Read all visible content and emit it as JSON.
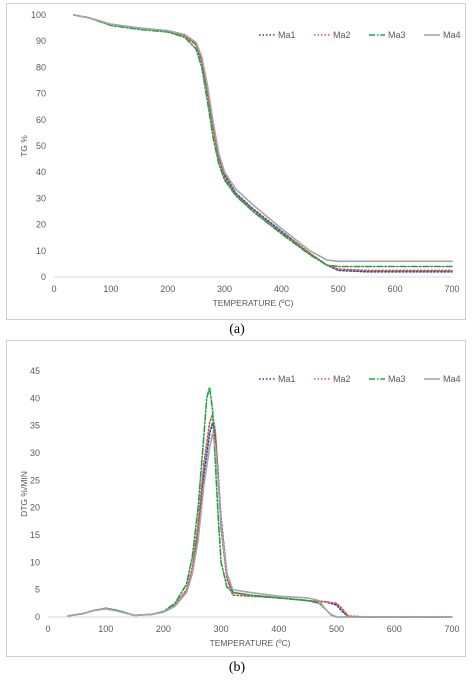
{
  "chart_data": [
    {
      "type": "line",
      "title": "",
      "xlabel": "TEMPERATURE (ºC)",
      "ylabel": "TG %",
      "xlim": [
        0,
        700
      ],
      "ylim": [
        0,
        100
      ],
      "xticks": [
        0,
        100,
        200,
        300,
        400,
        500,
        600,
        700
      ],
      "yticks": [
        0,
        10,
        20,
        30,
        40,
        50,
        60,
        70,
        80,
        90,
        100
      ],
      "grid": false,
      "legend": "top-right",
      "caption": "(a)",
      "series": [
        {
          "name": "Ma1",
          "color": "#1f4e9e",
          "dash": "1.5,2",
          "x": [
            35,
            60,
            100,
            150,
            200,
            230,
            250,
            260,
            270,
            280,
            290,
            300,
            320,
            350,
            400,
            450,
            480,
            500,
            550,
            600,
            650,
            700
          ],
          "y": [
            100,
            99,
            96.5,
            95,
            94,
            92.5,
            89,
            83,
            72,
            58,
            46,
            39,
            32,
            26,
            17.5,
            9,
            4.5,
            2.5,
            2,
            2,
            2,
            2
          ]
        },
        {
          "name": "Ma2",
          "color": "#e04a4a",
          "dash": "1.5,2",
          "x": [
            35,
            60,
            100,
            150,
            200,
            230,
            250,
            260,
            270,
            280,
            290,
            300,
            320,
            350,
            400,
            450,
            480,
            500,
            550,
            600,
            650,
            700
          ],
          "y": [
            100,
            99,
            96.5,
            95,
            94,
            92,
            88.5,
            82,
            70,
            56,
            45,
            38,
            31.5,
            25.5,
            17,
            9,
            4.5,
            3,
            2.5,
            2.5,
            2.5,
            2.5
          ]
        },
        {
          "name": "Ma3",
          "color": "#1ea34a",
          "dash": "6,2,1.5,2",
          "x": [
            35,
            60,
            100,
            150,
            200,
            230,
            250,
            260,
            270,
            280,
            290,
            300,
            320,
            350,
            400,
            450,
            480,
            500,
            550,
            600,
            650,
            700
          ],
          "y": [
            100,
            99,
            96,
            94.5,
            93.5,
            91.5,
            87,
            80,
            67,
            53,
            43,
            37,
            31,
            25,
            16.5,
            8.5,
            4.5,
            4,
            4,
            4,
            4,
            4
          ]
        },
        {
          "name": "Ma4",
          "color": "#a6a6a6",
          "dash": "",
          "x": [
            35,
            60,
            100,
            150,
            200,
            230,
            250,
            260,
            270,
            280,
            290,
            300,
            320,
            350,
            400,
            450,
            480,
            500,
            550,
            600,
            650,
            700
          ],
          "y": [
            100,
            99,
            96.5,
            95,
            94,
            92.5,
            89.5,
            84,
            73,
            59,
            47,
            40,
            33.5,
            27.5,
            18.5,
            10,
            6.5,
            6,
            6,
            6,
            6,
            6
          ]
        }
      ]
    },
    {
      "type": "line",
      "title": "",
      "xlabel": "TEMPERATURE (ºC)",
      "ylabel": "DTG %/MIN",
      "xlim": [
        0,
        700
      ],
      "ylim": [
        0,
        45
      ],
      "xticks": [
        0,
        100,
        200,
        300,
        400,
        500,
        600,
        700
      ],
      "yticks": [
        0,
        5,
        10,
        15,
        20,
        25,
        30,
        35,
        40,
        45
      ],
      "grid": false,
      "legend": "top-right",
      "caption": "(b)",
      "series": [
        {
          "name": "Ma1",
          "color": "#1f4e9e",
          "dash": "1.5,2",
          "x": [
            35,
            60,
            80,
            100,
            120,
            150,
            180,
            200,
            220,
            240,
            250,
            260,
            270,
            280,
            285,
            290,
            295,
            300,
            310,
            320,
            350,
            400,
            450,
            480,
            500,
            510,
            520,
            550,
            600,
            650,
            700
          ],
          "y": [
            0.2,
            0.6,
            1.2,
            1.6,
            1.2,
            0.3,
            0.5,
            0.9,
            2,
            4.5,
            8,
            15,
            26,
            33.5,
            35.5,
            33,
            26,
            18,
            8,
            4.5,
            4,
            3.5,
            3,
            2.8,
            2.2,
            1,
            0.1,
            0,
            0,
            0,
            0
          ]
        },
        {
          "name": "Ma2",
          "color": "#e04a4a",
          "dash": "1.5,2",
          "x": [
            35,
            60,
            80,
            100,
            120,
            150,
            180,
            200,
            220,
            240,
            250,
            260,
            270,
            280,
            285,
            290,
            295,
            300,
            310,
            320,
            350,
            400,
            450,
            480,
            500,
            510,
            520,
            550,
            600,
            650,
            700
          ],
          "y": [
            0.2,
            0.6,
            1.2,
            1.5,
            1.1,
            0.3,
            0.5,
            0.9,
            2.2,
            5,
            9,
            17,
            28,
            35.5,
            37,
            34,
            25,
            16,
            7,
            4,
            3.8,
            3.5,
            3,
            2.8,
            2.5,
            1.5,
            0.2,
            0,
            0,
            0,
            0
          ]
        },
        {
          "name": "Ma3",
          "color": "#1ea34a",
          "dash": "6,2,1.5,2",
          "x": [
            35,
            60,
            80,
            100,
            120,
            150,
            180,
            200,
            220,
            240,
            250,
            260,
            270,
            275,
            280,
            285,
            290,
            295,
            300,
            310,
            320,
            350,
            400,
            450,
            470,
            480,
            490,
            500,
            550,
            600,
            650,
            700
          ],
          "y": [
            0.2,
            0.6,
            1.2,
            1.6,
            1.2,
            0.3,
            0.5,
            1,
            2.5,
            6,
            11,
            20,
            33,
            40,
            42,
            38,
            28,
            18,
            10,
            5.5,
            4.5,
            4,
            3.5,
            3,
            2.5,
            1.5,
            0.4,
            0,
            0,
            0,
            0,
            0
          ]
        },
        {
          "name": "Ma4",
          "color": "#a6a6a6",
          "dash": "",
          "x": [
            35,
            60,
            80,
            100,
            120,
            150,
            180,
            200,
            220,
            240,
            250,
            260,
            270,
            280,
            285,
            290,
            295,
            300,
            310,
            320,
            350,
            400,
            450,
            470,
            480,
            490,
            500,
            550,
            600,
            650,
            700
          ],
          "y": [
            0.2,
            0.6,
            1.2,
            1.5,
            1.1,
            0.3,
            0.5,
            0.9,
            2,
            4.5,
            8,
            14,
            24,
            31,
            33.5,
            31,
            25,
            17,
            8,
            5,
            4.5,
            3.8,
            3.5,
            3,
            1.5,
            0.5,
            0,
            0,
            0,
            0,
            0
          ]
        }
      ]
    }
  ]
}
